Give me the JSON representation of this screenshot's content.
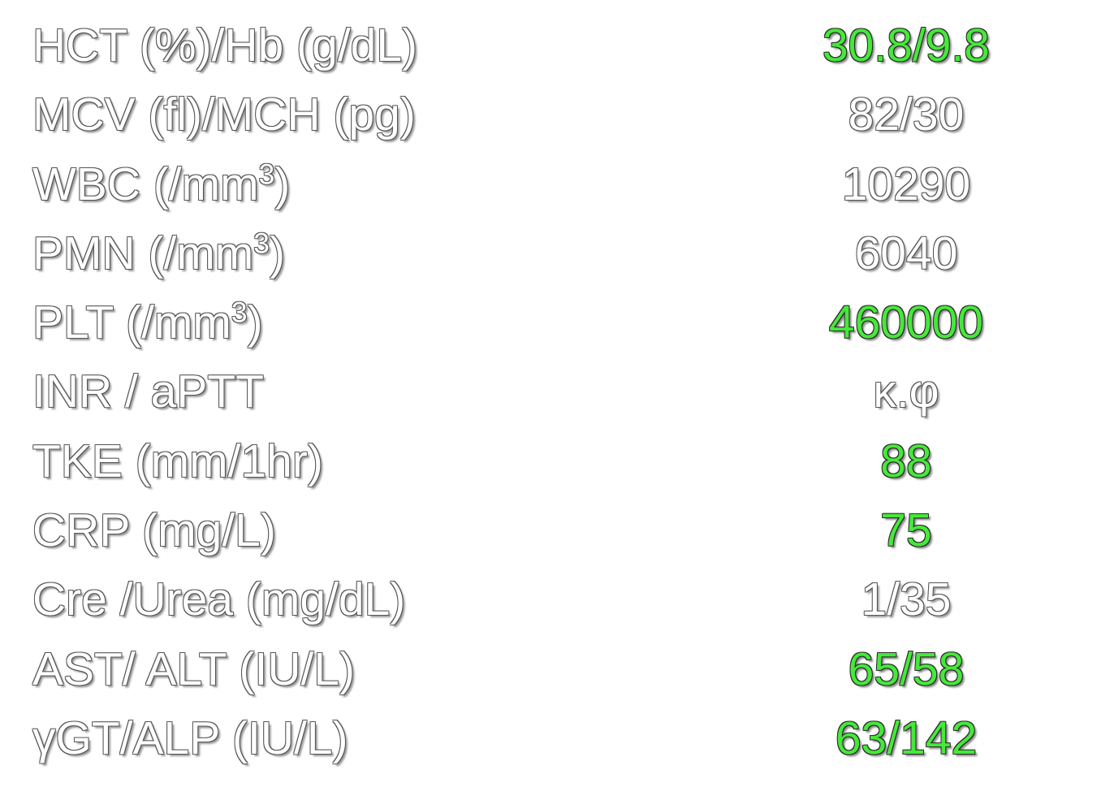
{
  "colors": {
    "normal_value": "#ffffff",
    "abnormal_value": "#46e83a",
    "background": "#ffffff"
  },
  "rows": [
    {
      "label": "HCT (%)/Hb (g/dL)",
      "label_sup": "",
      "label_suffix": "",
      "value": "30.8/9.8",
      "abnormal": true
    },
    {
      "label": "MCV (fl)/MCH (pg)",
      "label_sup": "",
      "label_suffix": "",
      "value": "82/30",
      "abnormal": false
    },
    {
      "label": "WBC (/mm",
      "label_sup": "3",
      "label_suffix": ")",
      "value": "10290",
      "abnormal": false
    },
    {
      "label": "PMN (/mm",
      "label_sup": "3",
      "label_suffix": ")",
      "value": "6040",
      "abnormal": false
    },
    {
      "label": "PLT (/mm",
      "label_sup": "3",
      "label_suffix": ")",
      "value": "460000",
      "abnormal": true
    },
    {
      "label": "INR / aPTT",
      "label_sup": "",
      "label_suffix": "",
      "value": "κ.φ",
      "abnormal": false
    },
    {
      "label": "TKE (mm/1hr)",
      "label_sup": "",
      "label_suffix": "",
      "value": "88",
      "abnormal": true
    },
    {
      "label": "CRP (mg/L)",
      "label_sup": "",
      "label_suffix": "",
      "value": "75",
      "abnormal": true
    },
    {
      "label": "Cre /Urea (mg/dL)",
      "label_sup": "",
      "label_suffix": "",
      "value": "1/35",
      "abnormal": false
    },
    {
      "label": "AST/ ALT (IU/L)",
      "label_sup": "",
      "label_suffix": "",
      "value": "65/58",
      "abnormal": true
    },
    {
      "label": "γGT/ALP (IU/L)",
      "label_sup": "",
      "label_suffix": "",
      "value": "63/142",
      "abnormal": true
    }
  ]
}
